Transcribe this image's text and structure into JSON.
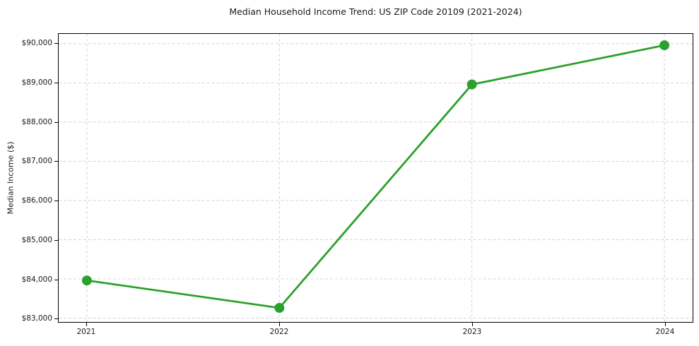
{
  "chart_data": {
    "type": "line",
    "title": "Median Household Income Trend: US ZIP Code 20109 (2021-2024)",
    "xlabel": "",
    "ylabel": "Median Income ($)",
    "categories": [
      "2021",
      "2022",
      "2023",
      "2024"
    ],
    "series": [
      {
        "name": "Median Household Income",
        "values": [
          83960,
          83260,
          88960,
          89960
        ]
      }
    ],
    "ylim": [
      82900,
      90250
    ],
    "y_ticks": [
      83000,
      84000,
      85000,
      86000,
      87000,
      88000,
      89000,
      90000
    ],
    "y_tick_labels": [
      "$83,000",
      "$84,000",
      "$85,000",
      "$86,000",
      "$87,000",
      "$88,000",
      "$89,000",
      "$90,000"
    ],
    "grid": "both",
    "grid_style": "dashed",
    "grid_color": "#d3d3d3",
    "legend": "none",
    "line_color": "#2ca02c",
    "marker": "circle",
    "marker_color": "#2ca02c",
    "background_color": "#ffffff"
  }
}
